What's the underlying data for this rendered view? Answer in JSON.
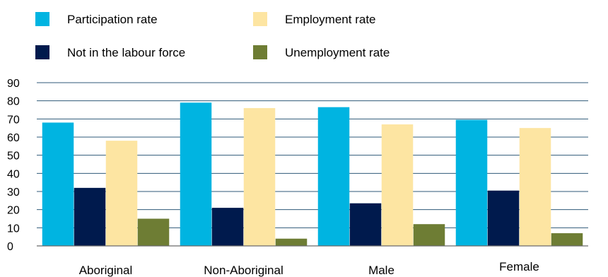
{
  "chart_data": {
    "type": "bar",
    "title": "",
    "xlabel": "",
    "ylabel": "",
    "ylim": [
      0,
      90
    ],
    "yticks": [
      0,
      10,
      20,
      30,
      40,
      50,
      60,
      70,
      80,
      90
    ],
    "grid": true,
    "legend_position": "top",
    "categories": [
      "Aboriginal",
      "Non-Aboriginal",
      "Male",
      "Female"
    ],
    "series": [
      {
        "name": "Participation rate",
        "color": "#00b4e1",
        "values": [
          68,
          79,
          76.5,
          69.5
        ]
      },
      {
        "name": "Not in the labour force",
        "color": "#001a4d",
        "values": [
          32,
          21,
          23.5,
          30.5
        ]
      },
      {
        "name": "Employment rate",
        "color": "#fde5a2",
        "values": [
          58,
          76,
          67,
          65
        ]
      },
      {
        "name": "Unemployment rate",
        "color": "#6e7d34",
        "values": [
          15,
          4,
          12,
          7
        ]
      }
    ]
  }
}
